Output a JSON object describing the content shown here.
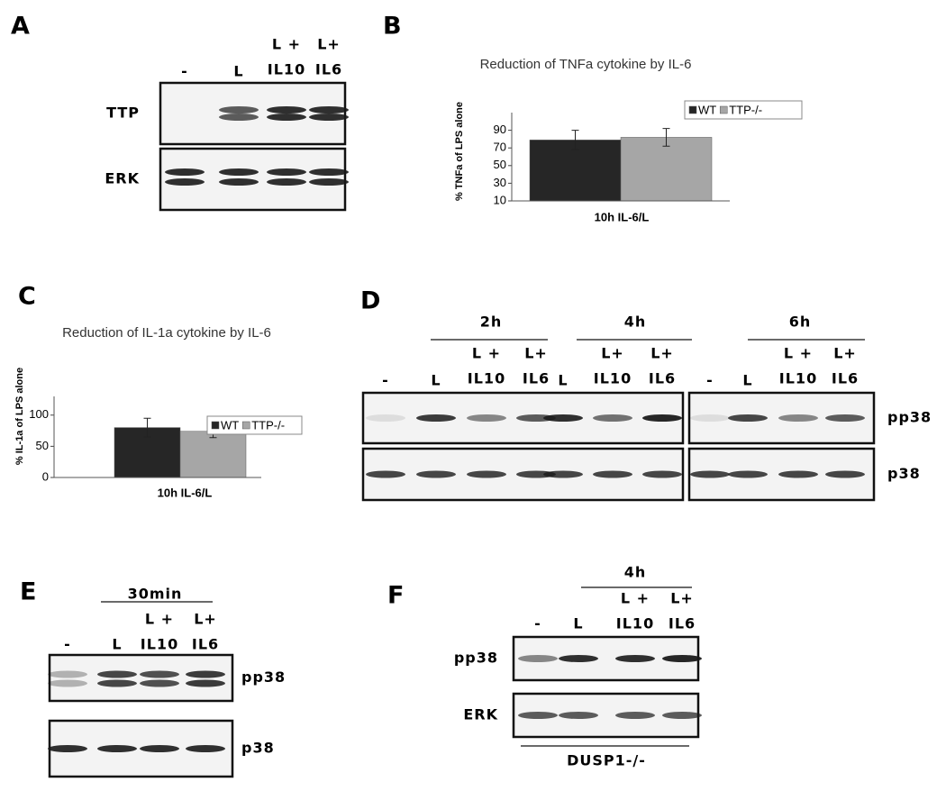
{
  "chart_data": [
    {
      "type": "bar",
      "panel": "B",
      "title": "Reduction of TNFa cytokine by IL-6",
      "y_label": "% TNFa of LPS alone",
      "categories": [
        "10h IL-6/L"
      ],
      "series": [
        {
          "name": "WT",
          "color": "#262626",
          "values": [
            79
          ],
          "errors": [
            11
          ]
        },
        {
          "name": "TTP-/-",
          "color": "#a6a6a6",
          "values": [
            82
          ],
          "errors": [
            10
          ]
        }
      ],
      "ylim": [
        10,
        110
      ],
      "yticks": [
        10,
        30,
        50,
        70,
        90
      ],
      "grid": false,
      "legend": "upper right"
    },
    {
      "type": "bar",
      "panel": "C",
      "title": "Reduction of IL-1a cytokine by IL-6",
      "y_label": "% IL-1a of LPS alone",
      "categories": [
        "10h IL-6/L"
      ],
      "series": [
        {
          "name": "WT",
          "color": "#262626",
          "values": [
            80
          ],
          "errors": [
            15
          ]
        },
        {
          "name": "TTP-/-",
          "color": "#a6a6a6",
          "values": [
            74
          ],
          "errors": [
            10
          ]
        }
      ],
      "ylim": [
        0,
        130
      ],
      "yticks": [
        0,
        50,
        100
      ],
      "grid": false,
      "legend": "upper right"
    }
  ],
  "blots": [
    {
      "panel": "A",
      "groups": [],
      "lanes": [
        [
          "-"
        ],
        [
          "L"
        ],
        [
          "L +",
          "IL10"
        ],
        [
          "L+",
          "IL6"
        ]
      ],
      "rows": [
        "TTP",
        "ERK"
      ]
    },
    {
      "panel": "D",
      "groups": [
        "2h",
        "4h",
        "6h"
      ],
      "lanes": [
        [
          "-"
        ],
        [
          "L"
        ],
        [
          "L +",
          "IL10"
        ],
        [
          "L+",
          "IL6"
        ],
        [
          "L"
        ],
        [
          "L+",
          "IL10"
        ],
        [
          "L+",
          "IL6"
        ],
        [
          "-"
        ],
        [
          "L"
        ],
        [
          "L +",
          "IL10"
        ],
        [
          "L+",
          "IL6"
        ]
      ],
      "rows": [
        "pp38",
        "p38"
      ]
    },
    {
      "panel": "E",
      "groups": [
        "30min"
      ],
      "lanes": [
        [
          "-"
        ],
        [
          "L"
        ],
        [
          "L +",
          "IL10"
        ],
        [
          "L+",
          "IL6"
        ]
      ],
      "rows": [
        "pp38",
        "p38"
      ]
    },
    {
      "panel": "F",
      "groups": [
        "4h"
      ],
      "lanes": [
        [
          "-"
        ],
        [
          "L"
        ],
        [
          "L +",
          "IL10"
        ],
        [
          "L+",
          "IL6"
        ]
      ],
      "rows": [
        "pp38",
        "ERK"
      ],
      "footer": "DUSP1-/-"
    }
  ]
}
